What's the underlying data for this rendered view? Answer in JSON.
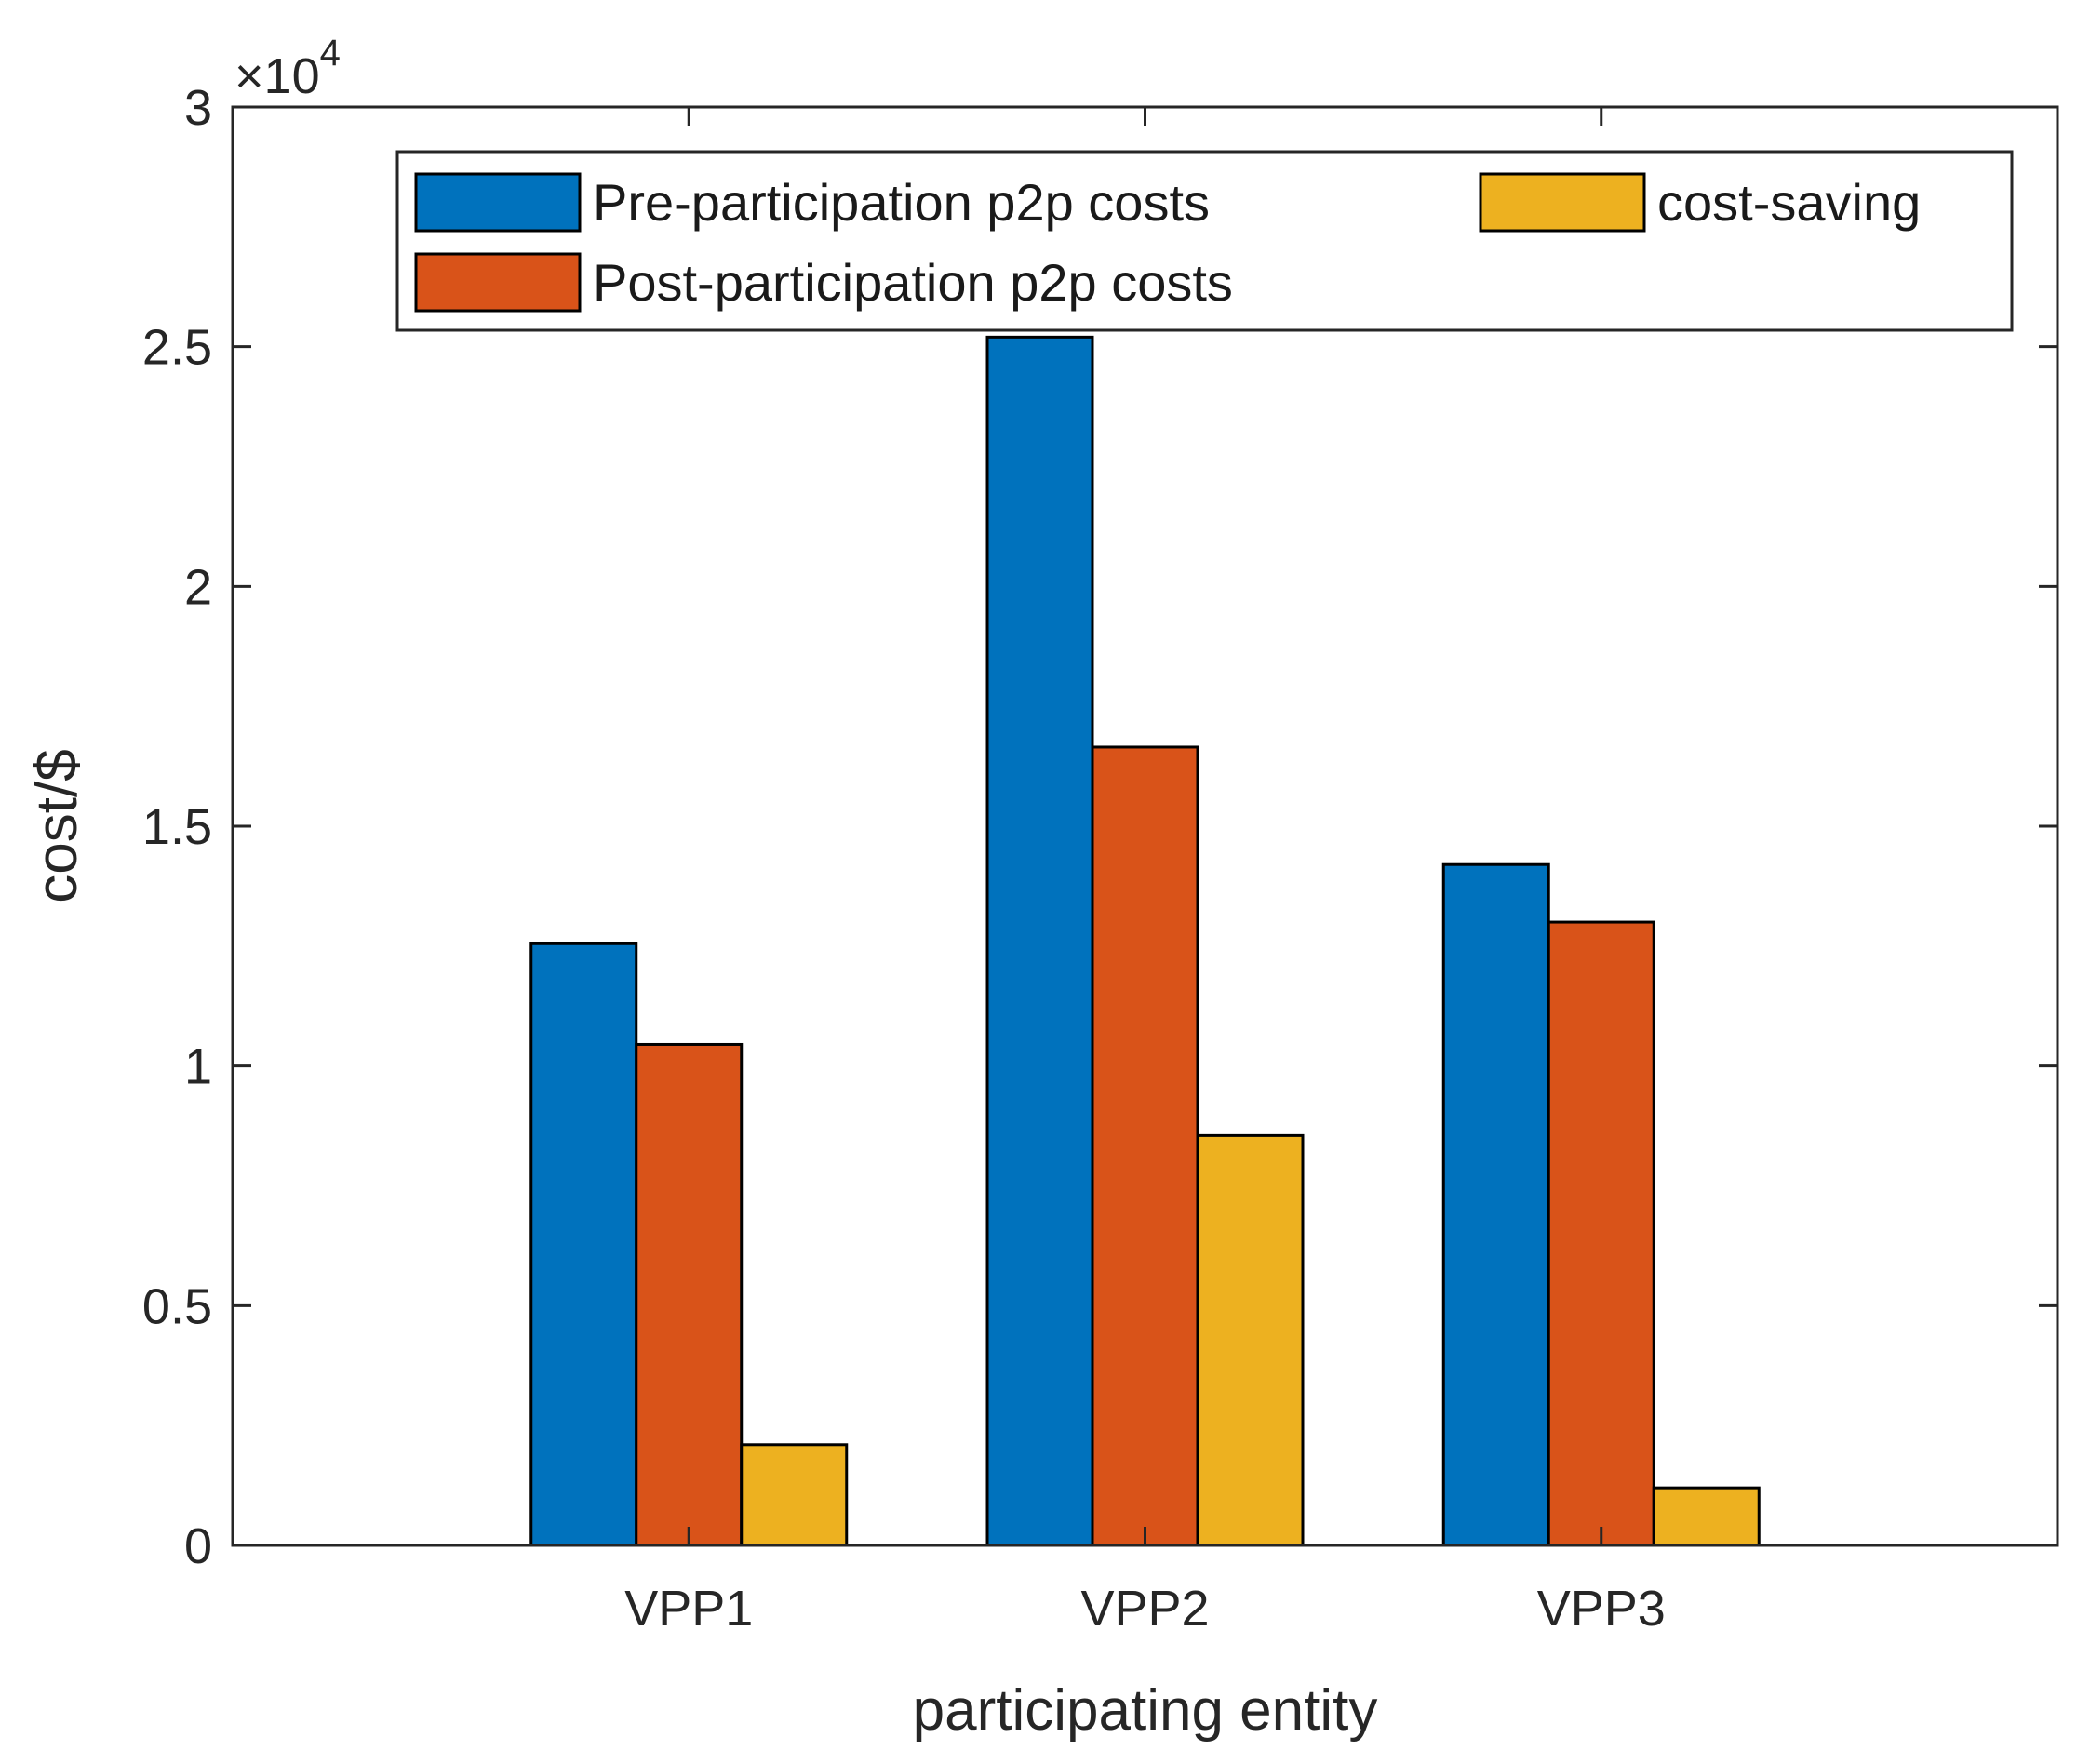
{
  "chart_data": {
    "type": "bar",
    "categories": [
      "VPP1",
      "VPP2",
      "VPP3"
    ],
    "series": [
      {
        "name": "Pre-participation p2p costs",
        "color": "#0072BD",
        "values": [
          12550,
          25200,
          14200
        ]
      },
      {
        "name": "Post-participation p2p costs",
        "color": "#D95319",
        "values": [
          10450,
          16650,
          13000
        ]
      },
      {
        "name": "cost-saving",
        "color": "#EDB120",
        "values": [
          2100,
          8550,
          1200
        ]
      }
    ],
    "xlabel": "participating entity",
    "ylabel": "cost/$",
    "ylim": [
      0,
      30000
    ],
    "yticks": [
      0,
      5000,
      10000,
      15000,
      20000,
      25000,
      30000
    ],
    "ytick_labels": [
      "0",
      "0.5",
      "1",
      "1.5",
      "2",
      "2.5",
      "3"
    ],
    "y_exponent": {
      "base": "×10",
      "power": "4"
    },
    "legend": {
      "position": "top",
      "columns": 2
    },
    "grid": false
  }
}
